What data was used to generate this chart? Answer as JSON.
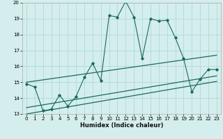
{
  "xlabel": "Humidex (Indice chaleur)",
  "bg_color": "#d4eeed",
  "grid_color": "#b0d8d8",
  "line_color": "#1a6b5a",
  "xlim": [
    -0.5,
    23.5
  ],
  "ylim": [
    13,
    20
  ],
  "yticks": [
    13,
    14,
    15,
    16,
    17,
    18,
    19,
    20
  ],
  "xticks": [
    0,
    1,
    2,
    3,
    4,
    5,
    6,
    7,
    8,
    9,
    10,
    11,
    12,
    13,
    14,
    15,
    16,
    17,
    18,
    19,
    20,
    21,
    22,
    23
  ],
  "main_x": [
    0,
    1,
    2,
    3,
    4,
    5,
    6,
    7,
    8,
    9,
    10,
    11,
    12,
    13,
    14,
    15,
    16,
    17,
    18,
    19,
    20,
    21,
    22,
    23
  ],
  "main_y": [
    14.9,
    14.7,
    13.2,
    13.3,
    14.2,
    13.5,
    14.1,
    15.3,
    16.2,
    15.1,
    19.2,
    19.1,
    20.1,
    19.1,
    16.5,
    19.0,
    18.85,
    18.9,
    17.8,
    16.5,
    14.4,
    15.2,
    15.8,
    15.8
  ],
  "line1_x": [
    0,
    23
  ],
  "line1_y": [
    15.0,
    16.7
  ],
  "line2_x": [
    0,
    23
  ],
  "line2_y": [
    13.4,
    15.4
  ],
  "line3_x": [
    0,
    23
  ],
  "line3_y": [
    13.0,
    15.05
  ]
}
